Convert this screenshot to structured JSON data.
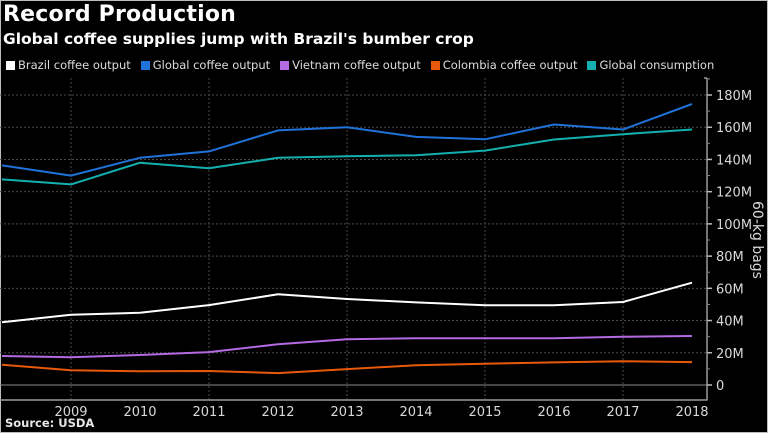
{
  "chart_data": {
    "type": "line",
    "title": "Record Production",
    "subtitle": "Global coffee supplies jump with Brazil's bumber crop",
    "source": "Source: USDA",
    "xlabel": "",
    "ylabel": "60-kg bags",
    "x": [
      2008,
      2009,
      2010,
      2011,
      2012,
      2013,
      2014,
      2015,
      2016,
      2017,
      2018
    ],
    "x_tick_labels": [
      "2009",
      "2010",
      "2011",
      "2012",
      "2013",
      "2014",
      "2015",
      "2016",
      "2017",
      "2018"
    ],
    "x_tick_values": [
      2009,
      2010,
      2011,
      2012,
      2013,
      2014,
      2015,
      2016,
      2017,
      2018
    ],
    "ylim": [
      0,
      180
    ],
    "y_unit": "M",
    "y_ticks": [
      0,
      20,
      40,
      60,
      80,
      100,
      120,
      140,
      160,
      180
    ],
    "y_tick_labels": [
      "0",
      "20M",
      "40M",
      "60M",
      "80M",
      "100M",
      "120M",
      "140M",
      "160M",
      "180M"
    ],
    "y_axis_position": "right",
    "grid": true,
    "legend_position": "top",
    "series": [
      {
        "name": "Brazil coffee output",
        "color": "#ffffff",
        "values": [
          39.0,
          43.6,
          44.8,
          49.6,
          56.3,
          53.4,
          51.3,
          49.5,
          49.5,
          51.5,
          63.5
        ]
      },
      {
        "name": "Global coffee output",
        "color": "#1f72d8",
        "values": [
          136.3,
          130.0,
          141.0,
          145.0,
          158.0,
          160.0,
          154.0,
          152.5,
          161.7,
          158.6,
          174.4
        ]
      },
      {
        "name": "Vietnam coffee output",
        "color": "#b36ae2",
        "values": [
          18.0,
          17.2,
          18.6,
          20.4,
          25.3,
          28.4,
          29.0,
          29.0,
          29.0,
          30.0,
          30.4
        ]
      },
      {
        "name": "Colombia coffee output",
        "color": "#e8590c",
        "values": [
          12.6,
          9.1,
          8.5,
          8.7,
          7.4,
          9.9,
          12.2,
          13.2,
          14.0,
          14.8,
          14.2
        ]
      },
      {
        "name": "Global consumption",
        "color": "#14b0b0",
        "values": [
          127.6,
          124.5,
          138.0,
          134.5,
          141.0,
          142.0,
          142.6,
          145.5,
          152.4,
          155.7,
          158.6
        ]
      }
    ]
  }
}
